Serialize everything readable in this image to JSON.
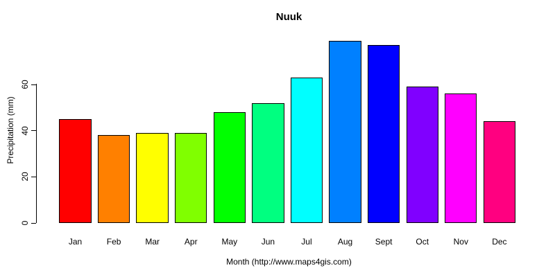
{
  "page": {
    "background_color": "#ffffff",
    "text_color": "#000000"
  },
  "chart_data": {
    "type": "bar",
    "title": "Nuuk",
    "categories": [
      "Jan",
      "Feb",
      "Mar",
      "Apr",
      "May",
      "Jun",
      "Jul",
      "Aug",
      "Sept",
      "Oct",
      "Nov",
      "Dec"
    ],
    "values": [
      45,
      38,
      39,
      39,
      48,
      52,
      63,
      79,
      77,
      59,
      56,
      44
    ],
    "bar_colors": [
      "#FF0000",
      "#FF8000",
      "#FFFF00",
      "#80FF00",
      "#00FF00",
      "#00FF80",
      "#00FFFF",
      "#0080FF",
      "#0000FF",
      "#8000FF",
      "#FF00FF",
      "#FF0080"
    ],
    "bar_border_color": "#000000",
    "xlabel": "Month (http://www.maps4gis.com)",
    "ylabel": "Precipitation (mm)",
    "yticks": [
      0,
      20,
      40,
      60
    ],
    "ylim": [
      0,
      80
    ],
    "grid": false,
    "legend": false,
    "ytick_label_rotation": 90,
    "units": "mm"
  }
}
